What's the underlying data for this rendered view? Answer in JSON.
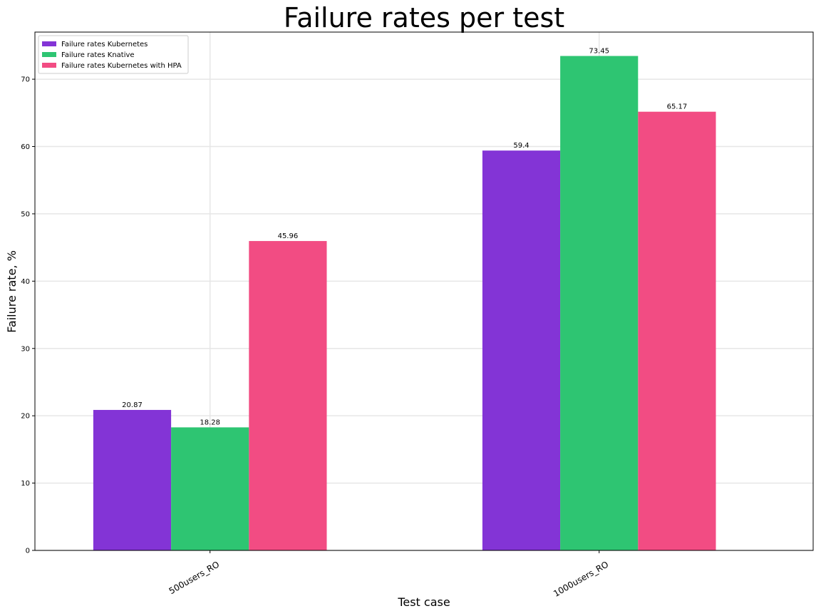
{
  "chart_data": {
    "type": "bar",
    "title": "Failure rates per test",
    "xlabel": "Test case",
    "ylabel": "Failure rate, %",
    "categories": [
      "500users_RO",
      "1000users_RO"
    ],
    "series": [
      {
        "name": "Failure rates Kubernetes",
        "color": "#8334d6",
        "values": [
          20.87,
          59.4
        ],
        "labels": [
          "20.87",
          "59.4"
        ]
      },
      {
        "name": "Failure rates Knative",
        "color": "#2ec572",
        "values": [
          18.28,
          73.45
        ],
        "labels": [
          "18.28",
          "73.45"
        ]
      },
      {
        "name": "Failure rates Kubernetes with HPA",
        "color": "#f24c83",
        "values": [
          45.96,
          65.17
        ],
        "labels": [
          "45.96",
          "65.17"
        ]
      }
    ],
    "ylim": [
      0,
      77
    ],
    "yticks": [
      0,
      10,
      20,
      30,
      40,
      50,
      60,
      70
    ],
    "grid": true,
    "legend_position": "top-left"
  }
}
